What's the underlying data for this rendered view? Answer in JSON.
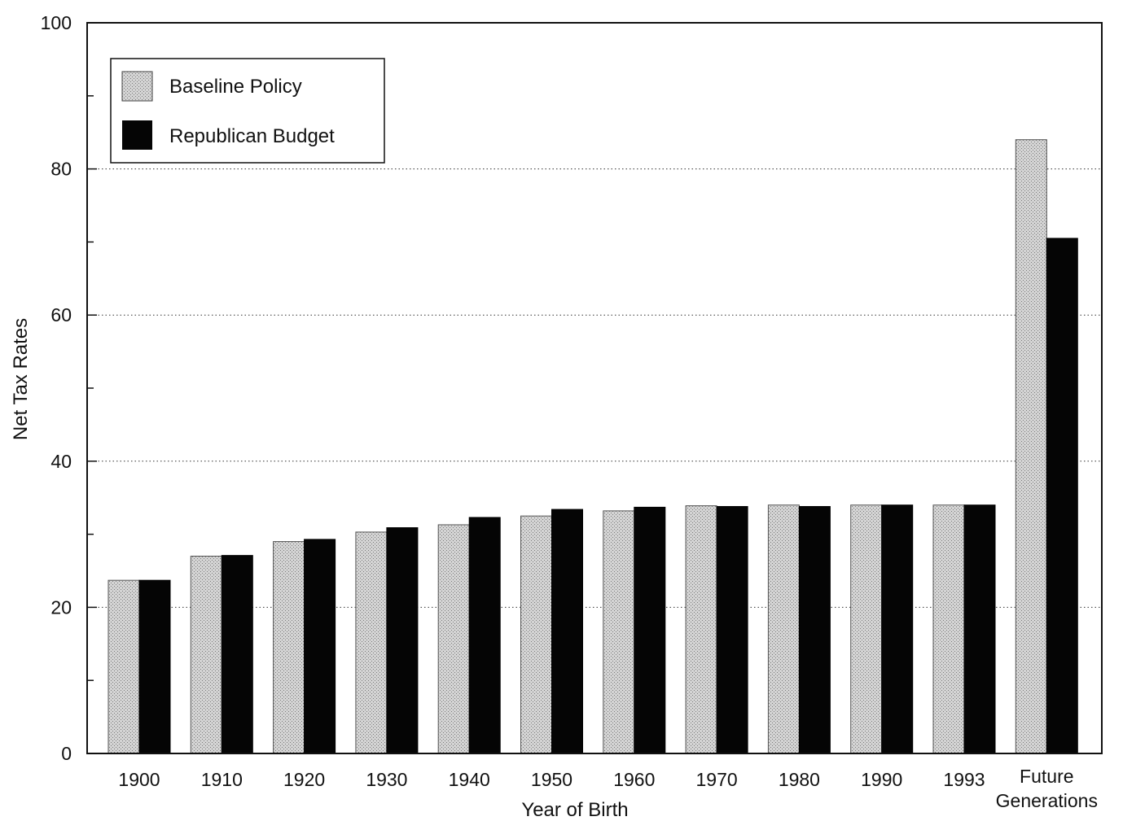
{
  "chart_data": {
    "type": "bar",
    "xlabel": "Year of Birth",
    "ylabel": "Net Tax Rates",
    "ylim": [
      0,
      100
    ],
    "y_ticks": [
      0,
      20,
      40,
      60,
      80,
      100
    ],
    "y_minor_step": 10,
    "grid": "horizontal dotted at major ticks",
    "legend_position": "top-left",
    "categories": [
      "1900",
      "1910",
      "1920",
      "1930",
      "1940",
      "1950",
      "1960",
      "1970",
      "1980",
      "1990",
      "1993",
      "Future Generations"
    ],
    "series": [
      {
        "name": "Baseline Policy",
        "color": "#c8c8c8",
        "values": [
          23.7,
          27.0,
          29.0,
          30.3,
          31.3,
          32.5,
          33.2,
          33.9,
          34.0,
          34.0,
          34.0,
          84.0
        ]
      },
      {
        "name": "Republican Budget",
        "color": "#050505",
        "values": [
          23.7,
          27.1,
          29.3,
          30.9,
          32.3,
          33.4,
          33.7,
          33.8,
          33.8,
          34.0,
          34.0,
          70.5
        ]
      }
    ]
  }
}
